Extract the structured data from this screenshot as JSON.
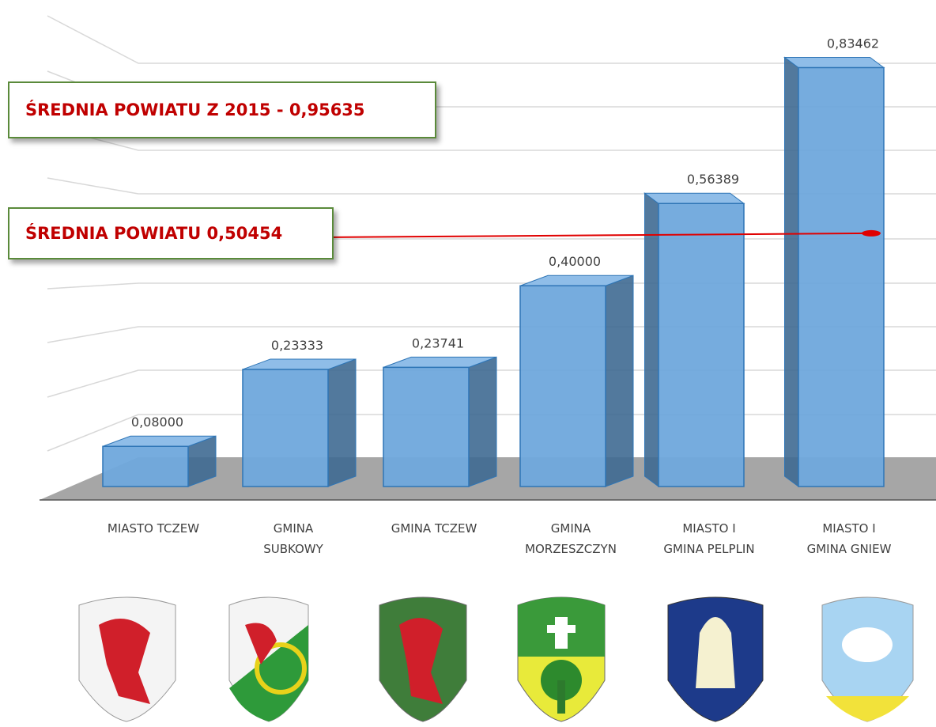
{
  "chart_data": {
    "type": "bar3d",
    "categories": [
      "MIASTO TCZEW",
      "GMINA\nSUBKOWY",
      "GMINA TCZEW",
      "GMINA\nMORZESZCZYN",
      "MIASTO I\nGMINA PELPLIN",
      "MIASTO I\nGMINA GNIEW"
    ],
    "values": [
      0.08,
      0.23333,
      0.23741,
      0.4,
      0.56389,
      0.83462
    ],
    "value_labels": [
      "0,08000",
      "0,23333",
      "0,23741",
      "0,40000",
      "0,56389",
      "0,83462"
    ],
    "color": "#6fa8dc",
    "ylim": [
      0,
      0.9
    ],
    "reference_line": {
      "value": 0.50454,
      "label": "ŚREDNIA POWIATU 0,50454",
      "color": "#e00000"
    },
    "annotation": "ŚREDNIA POWIATU Z 2015 - 0,95635"
  }
}
